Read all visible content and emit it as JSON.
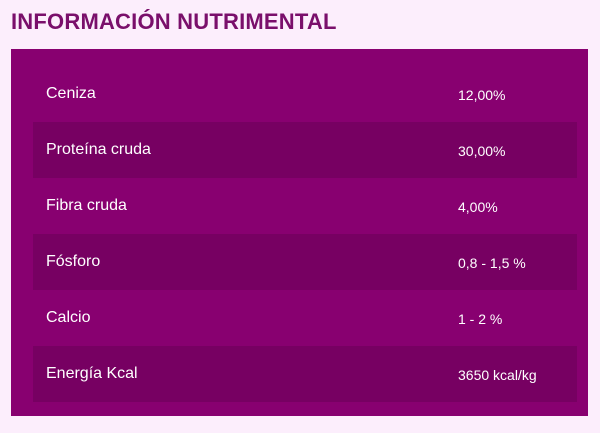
{
  "heading": "INFORMACIÓN NUTRIMENTAL",
  "colors": {
    "page_background": "#fceefc",
    "heading_text": "#7a0f6b",
    "panel": "#880070",
    "row_alt": "#770062",
    "cell_text": "#ffffff"
  },
  "rows": [
    {
      "label": "Ceniza",
      "value": "12,00%"
    },
    {
      "label": "Proteína cruda",
      "value": "30,00%"
    },
    {
      "label": "Fibra cruda",
      "value": "4,00%"
    },
    {
      "label": "Fósforo",
      "value": "0,8 - 1,5 %"
    },
    {
      "label": "Calcio",
      "value": "1 - 2 %"
    },
    {
      "label": "Energía Kcal",
      "value": "3650 kcal/kg"
    }
  ]
}
